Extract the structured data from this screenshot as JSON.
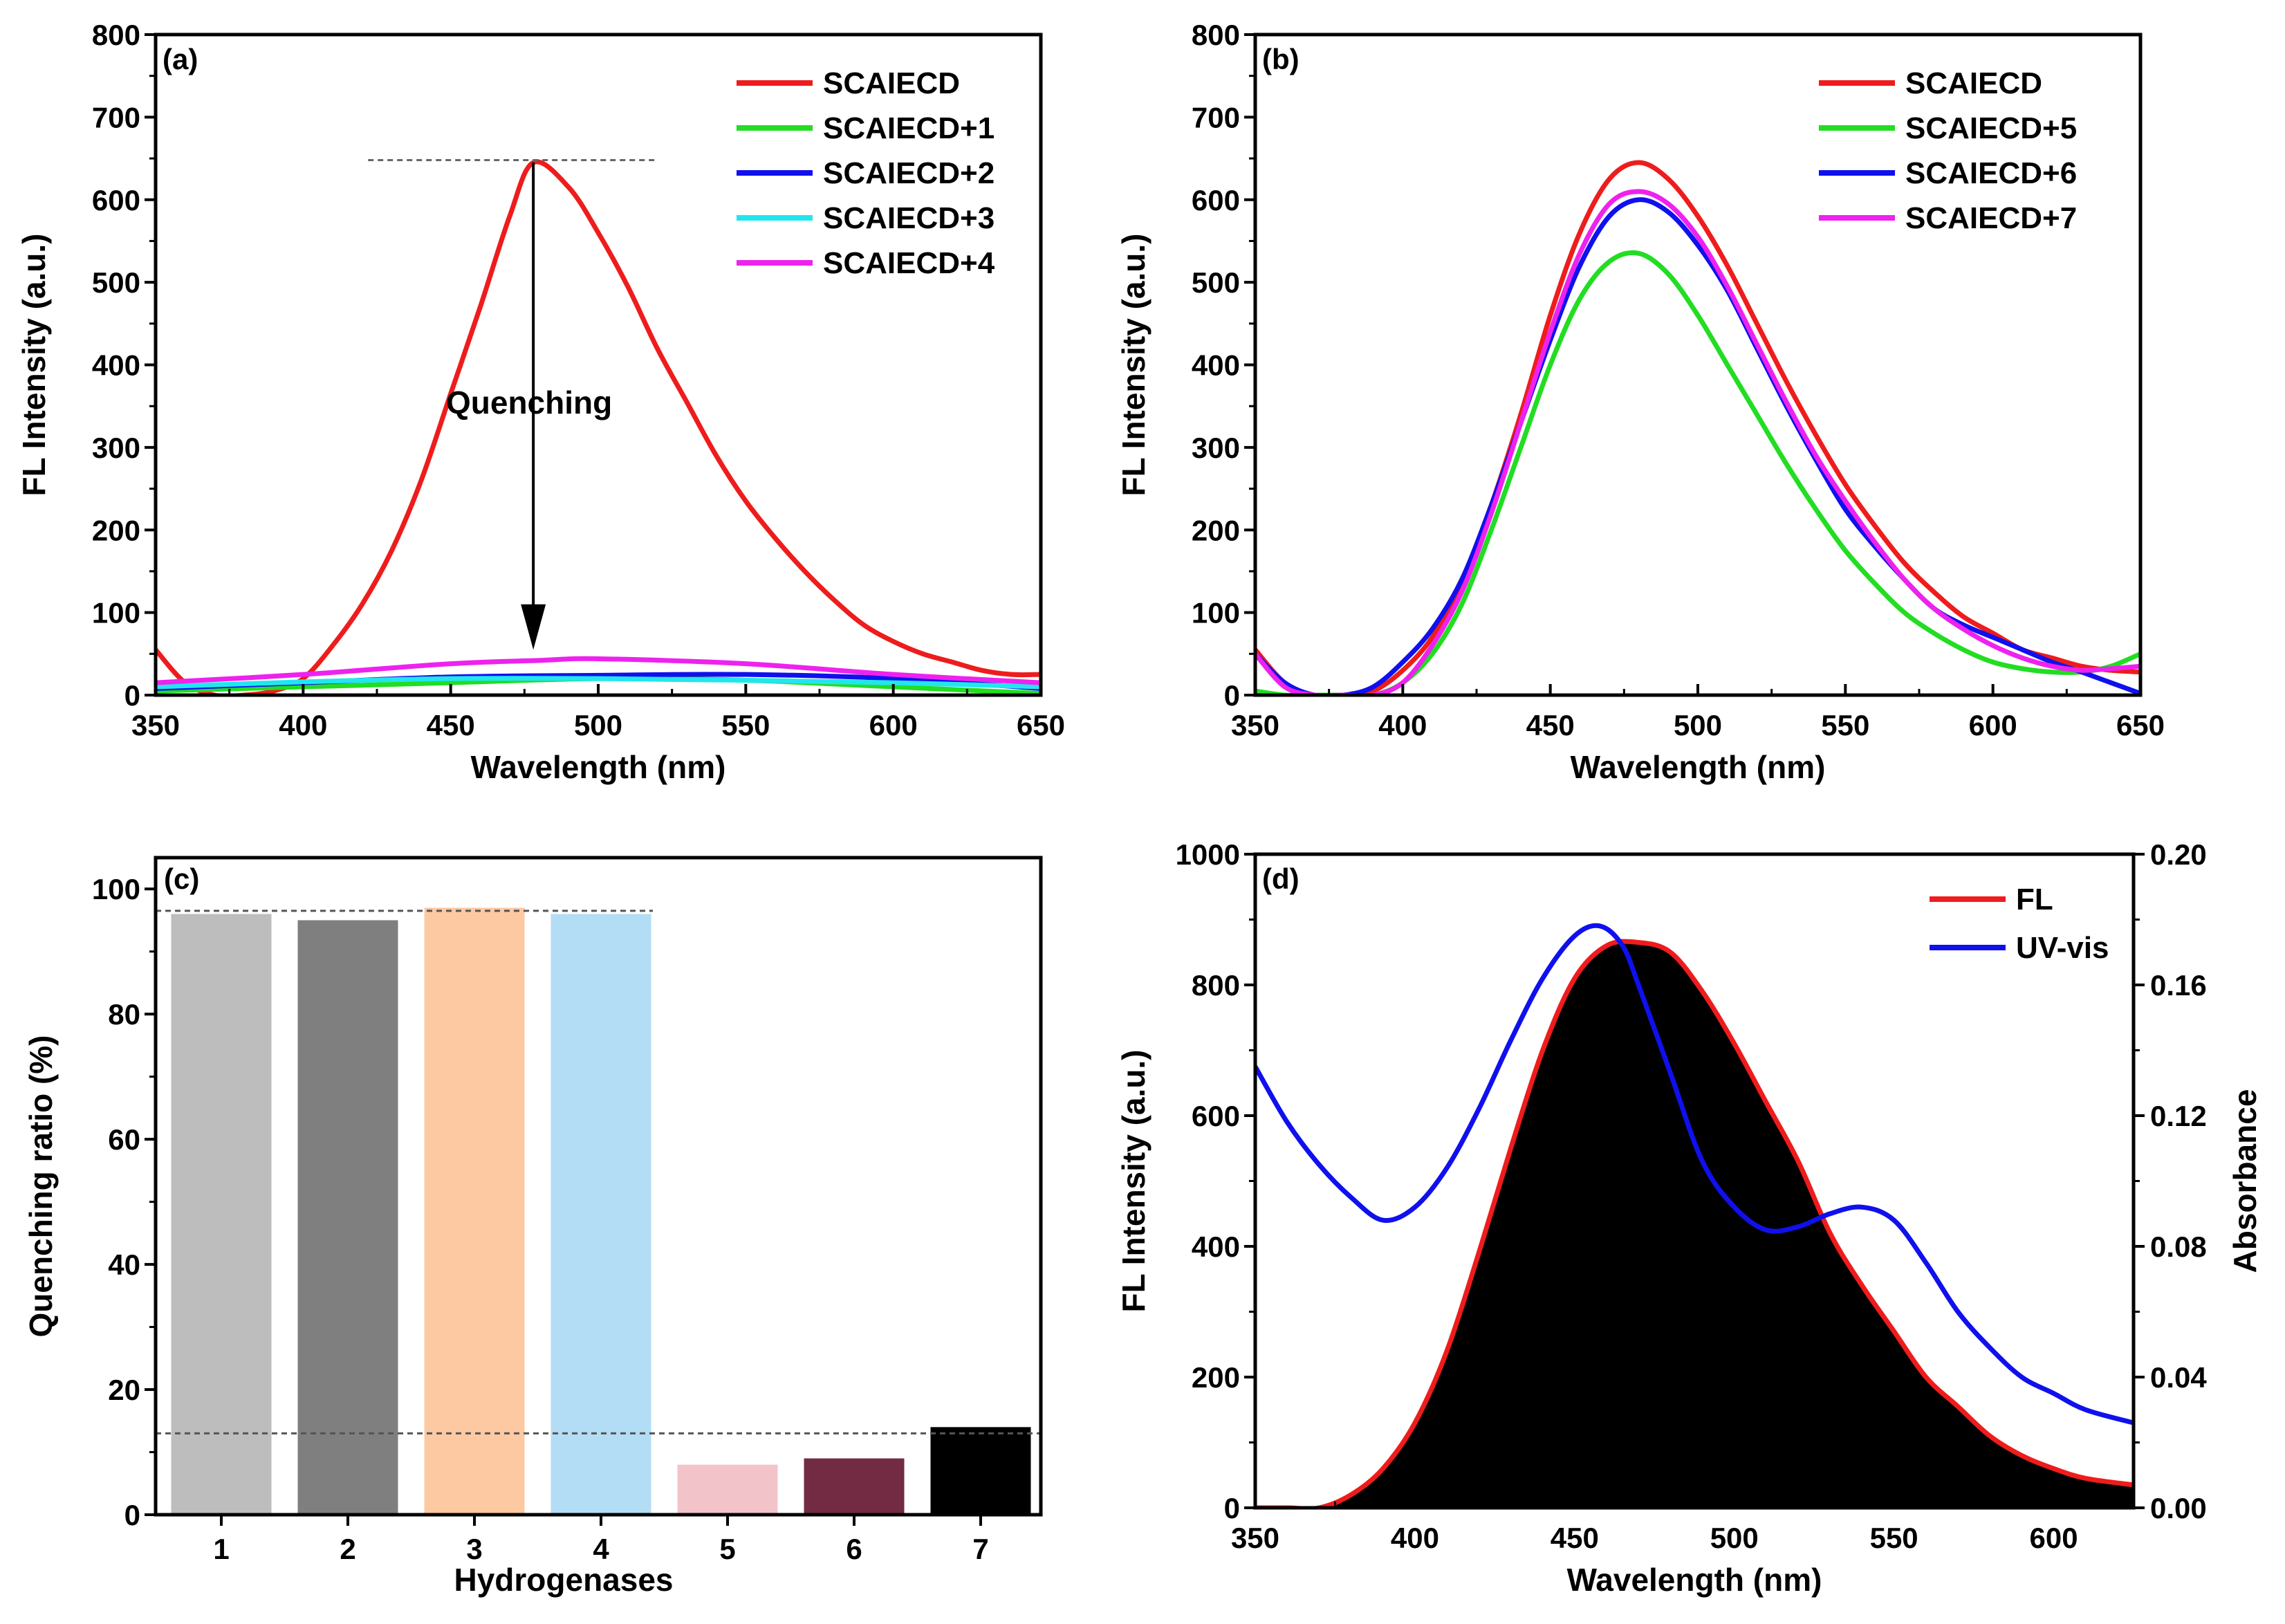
{
  "chart_data": [
    {
      "panel": "(a)",
      "type": "line",
      "xlabel": "Wavelength (nm)",
      "ylabel": "FL Intensity (a.u.)",
      "xlim": [
        350,
        650
      ],
      "ylim": [
        0,
        800
      ],
      "xticks": [
        350,
        400,
        450,
        500,
        550,
        600,
        650
      ],
      "yticks": [
        0,
        100,
        200,
        300,
        400,
        500,
        600,
        700,
        800
      ],
      "legend_position": "top-right",
      "annotation": "Quenching",
      "series": [
        {
          "name": "SCAIECD",
          "color": "#ee1c1c",
          "x": [
            350,
            360,
            370,
            380,
            390,
            400,
            410,
            420,
            430,
            440,
            450,
            460,
            470,
            478,
            490,
            500,
            510,
            520,
            530,
            540,
            550,
            560,
            570,
            580,
            590,
            600,
            610,
            620,
            630,
            640,
            650
          ],
          "y": [
            55,
            15,
            0,
            0,
            5,
            20,
            60,
            110,
            175,
            260,
            365,
            470,
            580,
            645,
            615,
            560,
            495,
            420,
            355,
            290,
            235,
            190,
            150,
            115,
            85,
            65,
            50,
            40,
            30,
            25,
            25
          ]
        },
        {
          "name": "SCAIECD+1",
          "color": "#22dd22",
          "x": [
            350,
            400,
            450,
            500,
            550,
            600,
            650
          ],
          "y": [
            5,
            10,
            15,
            20,
            18,
            10,
            2
          ]
        },
        {
          "name": "SCAIECD+2",
          "color": "#1010ee",
          "x": [
            350,
            400,
            450,
            500,
            550,
            600,
            650
          ],
          "y": [
            8,
            15,
            22,
            24,
            25,
            20,
            8
          ]
        },
        {
          "name": "SCAIECD+3",
          "color": "#22e6ee",
          "x": [
            350,
            400,
            450,
            500,
            550,
            600,
            650
          ],
          "y": [
            10,
            16,
            20,
            20,
            18,
            15,
            10
          ]
        },
        {
          "name": "SCAIECD+4",
          "color": "#ee22ee",
          "x": [
            350,
            400,
            450,
            480,
            500,
            550,
            600,
            650
          ],
          "y": [
            15,
            25,
            38,
            42,
            44,
            38,
            25,
            15
          ]
        }
      ]
    },
    {
      "panel": "(b)",
      "type": "line",
      "xlabel": "Wavelength (nm)",
      "ylabel": "FL Intensity (a.u.)",
      "xlim": [
        350,
        650
      ],
      "ylim": [
        0,
        800
      ],
      "xticks": [
        350,
        400,
        450,
        500,
        550,
        600,
        650
      ],
      "yticks": [
        0,
        100,
        200,
        300,
        400,
        500,
        600,
        700,
        800
      ],
      "legend_position": "top-right",
      "series": [
        {
          "name": "SCAIECD",
          "color": "#ee1c1c",
          "x": [
            350,
            360,
            370,
            380,
            390,
            400,
            410,
            420,
            430,
            440,
            450,
            460,
            470,
            480,
            490,
            500,
            510,
            520,
            530,
            540,
            550,
            560,
            570,
            580,
            590,
            600,
            610,
            620,
            630,
            640,
            650
          ],
          "y": [
            55,
            15,
            0,
            0,
            5,
            30,
            70,
            135,
            230,
            340,
            460,
            560,
            625,
            645,
            625,
            580,
            520,
            450,
            380,
            315,
            255,
            205,
            160,
            125,
            95,
            75,
            55,
            45,
            35,
            30,
            28
          ]
        },
        {
          "name": "SCAIECD+5",
          "color": "#22dd22",
          "x": [
            350,
            360,
            370,
            380,
            390,
            400,
            410,
            420,
            430,
            440,
            450,
            460,
            470,
            480,
            490,
            500,
            510,
            520,
            530,
            540,
            550,
            560,
            570,
            580,
            590,
            600,
            610,
            620,
            630,
            640,
            650
          ],
          "y": [
            5,
            0,
            0,
            0,
            0,
            15,
            50,
            110,
            200,
            300,
            400,
            480,
            525,
            535,
            510,
            460,
            400,
            340,
            280,
            225,
            175,
            135,
            100,
            75,
            55,
            40,
            32,
            28,
            28,
            35,
            50
          ]
        },
        {
          "name": "SCAIECD+6",
          "color": "#1010ee",
          "x": [
            350,
            360,
            370,
            380,
            390,
            400,
            410,
            420,
            430,
            440,
            450,
            460,
            470,
            480,
            490,
            500,
            510,
            520,
            530,
            540,
            550,
            560,
            570,
            580,
            590,
            600,
            610,
            620,
            630,
            640,
            650
          ],
          "y": [
            50,
            15,
            0,
            0,
            10,
            40,
            80,
            140,
            230,
            330,
            430,
            520,
            580,
            600,
            585,
            545,
            490,
            420,
            350,
            285,
            225,
            180,
            140,
            105,
            85,
            70,
            55,
            40,
            28,
            15,
            2
          ]
        },
        {
          "name": "SCAIECD+7",
          "color": "#ee22ee",
          "x": [
            350,
            360,
            370,
            380,
            390,
            400,
            410,
            420,
            430,
            440,
            450,
            460,
            470,
            480,
            490,
            500,
            510,
            520,
            530,
            540,
            550,
            560,
            570,
            580,
            590,
            600,
            610,
            620,
            630,
            640,
            650
          ],
          "y": [
            50,
            10,
            0,
            0,
            0,
            15,
            60,
            125,
            220,
            330,
            440,
            535,
            595,
            610,
            595,
            555,
            495,
            425,
            355,
            290,
            235,
            185,
            140,
            105,
            80,
            60,
            45,
            35,
            30,
            32,
            35
          ]
        }
      ]
    },
    {
      "panel": "(c)",
      "type": "bar",
      "xlabel": "Hydrogenases",
      "ylabel": "Quenching ratio (%)",
      "ylim": [
        0,
        105
      ],
      "yticks": [
        0,
        20,
        40,
        60,
        80,
        100
      ],
      "categories": [
        "1",
        "2",
        "3",
        "4",
        "5",
        "6",
        "7"
      ],
      "values": [
        96,
        95,
        97,
        96,
        8,
        9,
        14
      ],
      "colors": [
        "#bdbdbd",
        "#7f7f7f",
        "#fdc9a3",
        "#b3ddf4",
        "#f2c4ca",
        "#732b43",
        "#000000"
      ],
      "reference_lines": [
        96.5,
        13
      ]
    },
    {
      "panel": "(d)",
      "type": "area",
      "xlabel": "Wavelength (nm)",
      "ylabel": "FL Intensity (a.u.)",
      "y2label": "Absorbance",
      "xlim": [
        350,
        625
      ],
      "ylim": [
        0,
        1000
      ],
      "y2lim": [
        0,
        0.2
      ],
      "xticks": [
        350,
        400,
        450,
        500,
        550,
        600
      ],
      "yticks": [
        0,
        200,
        400,
        600,
        800,
        1000
      ],
      "y2ticks": [
        "0.00",
        "0.04",
        "0.08",
        "0.12",
        "0.16",
        "0.20"
      ],
      "legend_position": "top-right",
      "series": [
        {
          "name": "FL",
          "color": "#ee1c1c",
          "axis": "left",
          "x": [
            350,
            360,
            370,
            380,
            390,
            400,
            410,
            420,
            430,
            440,
            450,
            460,
            470,
            480,
            490,
            500,
            510,
            520,
            530,
            540,
            550,
            560,
            570,
            580,
            590,
            600,
            610,
            625
          ],
          "y": [
            0,
            0,
            0,
            20,
            60,
            130,
            240,
            390,
            550,
            700,
            810,
            860,
            865,
            850,
            790,
            710,
            620,
            530,
            420,
            340,
            270,
            200,
            155,
            110,
            80,
            60,
            45,
            35
          ]
        },
        {
          "name": "UV-vis",
          "color": "#1010ee",
          "axis": "right",
          "x": [
            350,
            360,
            370,
            380,
            390,
            400,
            410,
            420,
            430,
            440,
            450,
            458,
            465,
            470,
            480,
            490,
            500,
            510,
            520,
            530,
            540,
            550,
            560,
            570,
            580,
            590,
            600,
            610,
            625
          ],
          "y": [
            0.135,
            0.118,
            0.105,
            0.095,
            0.088,
            0.092,
            0.104,
            0.122,
            0.143,
            0.162,
            0.175,
            0.178,
            0.172,
            0.16,
            0.133,
            0.106,
            0.092,
            0.085,
            0.086,
            0.09,
            0.092,
            0.088,
            0.075,
            0.06,
            0.049,
            0.04,
            0.035,
            0.03,
            0.026
          ]
        }
      ]
    }
  ]
}
